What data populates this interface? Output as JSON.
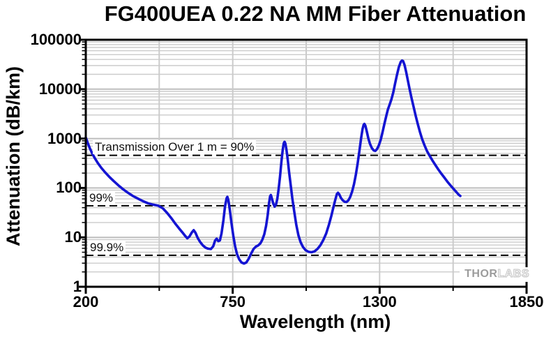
{
  "chart_data": {
    "type": "line",
    "title": "FG400UEA 0.22 NA MM Fiber Attenuation",
    "xlabel": "Wavelength (nm)",
    "ylabel": "Attenuation (dB/km)",
    "grid": "major and minor, gray, full box frame",
    "x_axis": {
      "min": 200,
      "max": 1850,
      "scale": "linear",
      "major_ticks": [
        200,
        750,
        1300,
        1850
      ],
      "tick_labels": [
        "200",
        "750",
        "1300",
        "1850"
      ],
      "minor_ticks": [
        475,
        1025,
        1575
      ]
    },
    "y_axis": {
      "min": 1,
      "max": 100000,
      "scale": "log",
      "major_ticks": [
        1,
        10,
        100,
        1000,
        10000,
        100000
      ],
      "tick_labels": [
        "1",
        "10",
        "100",
        "1000",
        "10000",
        "100000"
      ]
    },
    "reference_lines": [
      {
        "label": "Transmission Over 1 m = 90%",
        "value_db_per_km": 457.6,
        "style": "black dashed"
      },
      {
        "label": "99%",
        "value_db_per_km": 43.6,
        "style": "black dashed"
      },
      {
        "label": "99.9%",
        "value_db_per_km": 4.34,
        "style": "black dashed"
      }
    ],
    "series": [
      {
        "name": "FG400UEA fiber attenuation",
        "color": "#1414d2",
        "points": [
          [
            200,
            1050
          ],
          [
            207,
            820
          ],
          [
            215,
            640
          ],
          [
            224,
            500
          ],
          [
            234,
            400
          ],
          [
            245,
            320
          ],
          [
            258,
            256
          ],
          [
            272,
            208
          ],
          [
            288,
            168
          ],
          [
            305,
            137
          ],
          [
            322,
            113
          ],
          [
            340,
            94
          ],
          [
            358,
            80
          ],
          [
            376,
            69
          ],
          [
            395,
            61
          ],
          [
            414,
            54
          ],
          [
            433,
            49
          ],
          [
            452,
            46
          ],
          [
            470,
            44
          ],
          [
            488,
            39
          ],
          [
            505,
            31
          ],
          [
            520,
            24.5
          ],
          [
            535,
            19
          ],
          [
            549,
            15.2
          ],
          [
            562,
            12.5
          ],
          [
            572,
            10.7
          ],
          [
            580,
            9.6
          ],
          [
            588,
            10.4
          ],
          [
            597,
            12.6
          ],
          [
            604,
            14
          ],
          [
            611,
            12.3
          ],
          [
            619,
            9.7
          ],
          [
            628,
            8.1
          ],
          [
            638,
            6.9
          ],
          [
            648,
            6.2
          ],
          [
            658,
            5.9
          ],
          [
            668,
            5.8
          ],
          [
            677,
            6.6
          ],
          [
            684,
            8.6
          ],
          [
            690,
            9.4
          ],
          [
            696,
            8.4
          ],
          [
            702,
            8.7
          ],
          [
            708,
            12
          ],
          [
            715,
            22
          ],
          [
            721,
            42
          ],
          [
            727,
            62
          ],
          [
            730,
            66
          ],
          [
            734,
            56
          ],
          [
            739,
            36
          ],
          [
            745,
            20
          ],
          [
            752,
            11
          ],
          [
            759,
            6.6
          ],
          [
            766,
            4.6
          ],
          [
            774,
            3.6
          ],
          [
            783,
            3.1
          ],
          [
            792,
            2.95
          ],
          [
            801,
            3.1
          ],
          [
            810,
            3.7
          ],
          [
            819,
            4.7
          ],
          [
            828,
            5.8
          ],
          [
            837,
            6.5
          ],
          [
            846,
            6.9
          ],
          [
            854,
            7.6
          ],
          [
            861,
            9
          ],
          [
            868,
            11.5
          ],
          [
            875,
            17
          ],
          [
            881,
            28
          ],
          [
            886,
            50
          ],
          [
            890,
            68
          ],
          [
            893,
            72
          ],
          [
            897,
            60
          ],
          [
            902,
            48
          ],
          [
            907,
            42
          ],
          [
            912,
            46
          ],
          [
            917,
            60
          ],
          [
            922,
            95
          ],
          [
            927,
            170
          ],
          [
            932,
            330
          ],
          [
            937,
            580
          ],
          [
            941,
            800
          ],
          [
            944,
            860
          ],
          [
            947,
            800
          ],
          [
            951,
            600
          ],
          [
            956,
            370
          ],
          [
            961,
            210
          ],
          [
            967,
            115
          ],
          [
            973,
            62
          ],
          [
            980,
            34
          ],
          [
            988,
            18
          ],
          [
            996,
            11
          ],
          [
            1004,
            8
          ],
          [
            1013,
            6.4
          ],
          [
            1023,
            5.5
          ],
          [
            1034,
            5.1
          ],
          [
            1045,
            5
          ],
          [
            1056,
            5.2
          ],
          [
            1067,
            5.8
          ],
          [
            1078,
            6.9
          ],
          [
            1089,
            8.8
          ],
          [
            1100,
            12
          ],
          [
            1110,
            18
          ],
          [
            1119,
            27
          ],
          [
            1127,
            41
          ],
          [
            1134,
            58
          ],
          [
            1140,
            75
          ],
          [
            1144,
            80
          ],
          [
            1149,
            74
          ],
          [
            1155,
            63
          ],
          [
            1162,
            56
          ],
          [
            1169,
            52.5
          ],
          [
            1176,
            52
          ],
          [
            1183,
            56
          ],
          [
            1190,
            66
          ],
          [
            1197,
            85
          ],
          [
            1204,
            120
          ],
          [
            1211,
            185
          ],
          [
            1218,
            320
          ],
          [
            1225,
            600
          ],
          [
            1231,
            1050
          ],
          [
            1236,
            1550
          ],
          [
            1240,
            1900
          ],
          [
            1243,
            1980
          ],
          [
            1247,
            1800
          ],
          [
            1252,
            1400
          ],
          [
            1258,
            1000
          ],
          [
            1264,
            780
          ],
          [
            1271,
            640
          ],
          [
            1278,
            575
          ],
          [
            1284,
            565
          ],
          [
            1290,
            610
          ],
          [
            1297,
            730
          ],
          [
            1304,
            950
          ],
          [
            1311,
            1350
          ],
          [
            1318,
            2000
          ],
          [
            1325,
            2900
          ],
          [
            1331,
            3900
          ],
          [
            1337,
            4800
          ],
          [
            1344,
            6200
          ],
          [
            1351,
            8600
          ],
          [
            1358,
            13000
          ],
          [
            1365,
            19500
          ],
          [
            1372,
            28000
          ],
          [
            1379,
            35500
          ],
          [
            1384,
            38000
          ],
          [
            1388,
            37000
          ],
          [
            1393,
            31000
          ],
          [
            1399,
            22500
          ],
          [
            1405,
            15500
          ],
          [
            1412,
            10200
          ],
          [
            1419,
            6800
          ],
          [
            1427,
            4400
          ],
          [
            1435,
            2900
          ],
          [
            1443,
            1950
          ],
          [
            1451,
            1350
          ],
          [
            1459,
            980
          ],
          [
            1468,
            730
          ],
          [
            1477,
            565
          ],
          [
            1487,
            450
          ],
          [
            1497,
            365
          ],
          [
            1508,
            295
          ],
          [
            1519,
            240
          ],
          [
            1531,
            195
          ],
          [
            1543,
            160
          ],
          [
            1555,
            131
          ],
          [
            1567,
            110
          ],
          [
            1578,
            94
          ],
          [
            1588,
            82
          ],
          [
            1596,
            73
          ],
          [
            1602,
            69
          ]
        ]
      }
    ],
    "colors": {
      "curve": "#1414d2",
      "grid_major": "#bdbdbd",
      "grid_minor": "#cbcbcb",
      "frame": "#000000",
      "logo_gray": "#9c9c9c"
    },
    "logo": {
      "text_solid": "THOR",
      "text_outline": "LABS"
    }
  }
}
